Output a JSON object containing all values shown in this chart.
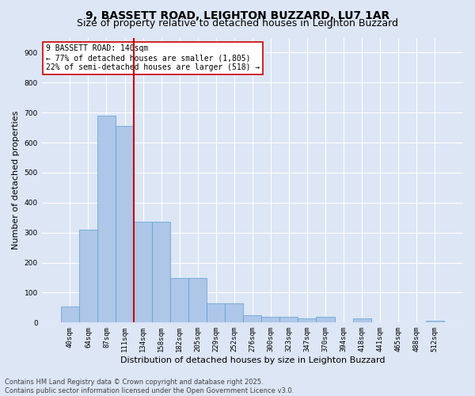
{
  "title_line1": "9, BASSETT ROAD, LEIGHTON BUZZARD, LU7 1AR",
  "title_line2": "Size of property relative to detached houses in Leighton Buzzard",
  "xlabel": "Distribution of detached houses by size in Leighton Buzzard",
  "ylabel": "Number of detached properties",
  "categories": [
    "40sqm",
    "64sqm",
    "87sqm",
    "111sqm",
    "134sqm",
    "158sqm",
    "182sqm",
    "205sqm",
    "229sqm",
    "252sqm",
    "276sqm",
    "300sqm",
    "323sqm",
    "347sqm",
    "370sqm",
    "394sqm",
    "418sqm",
    "441sqm",
    "465sqm",
    "488sqm",
    "512sqm"
  ],
  "values": [
    55,
    310,
    690,
    655,
    335,
    335,
    150,
    150,
    65,
    65,
    25,
    20,
    20,
    15,
    20,
    0,
    15,
    0,
    0,
    0,
    5
  ],
  "bar_color": "#aec6e8",
  "bar_edge_color": "#5a9fd4",
  "vline_pos": 3.5,
  "vline_color": "#cc0000",
  "annotation_text": "9 BASSETT ROAD: 140sqm\n← 77% of detached houses are smaller (1,805)\n22% of semi-detached houses are larger (518) →",
  "annotation_box_color": "#ffffff",
  "annotation_box_edge": "#cc0000",
  "ylim": [
    0,
    950
  ],
  "yticks": [
    0,
    100,
    200,
    300,
    400,
    500,
    600,
    700,
    800,
    900
  ],
  "background_color": "#dce6f5",
  "grid_color": "#ffffff",
  "footer_line1": "Contains HM Land Registry data © Crown copyright and database right 2025.",
  "footer_line2": "Contains public sector information licensed under the Open Government Licence v3.0.",
  "title_fontsize": 10,
  "subtitle_fontsize": 9,
  "tick_fontsize": 6.5,
  "label_fontsize": 8,
  "annot_fontsize": 7
}
